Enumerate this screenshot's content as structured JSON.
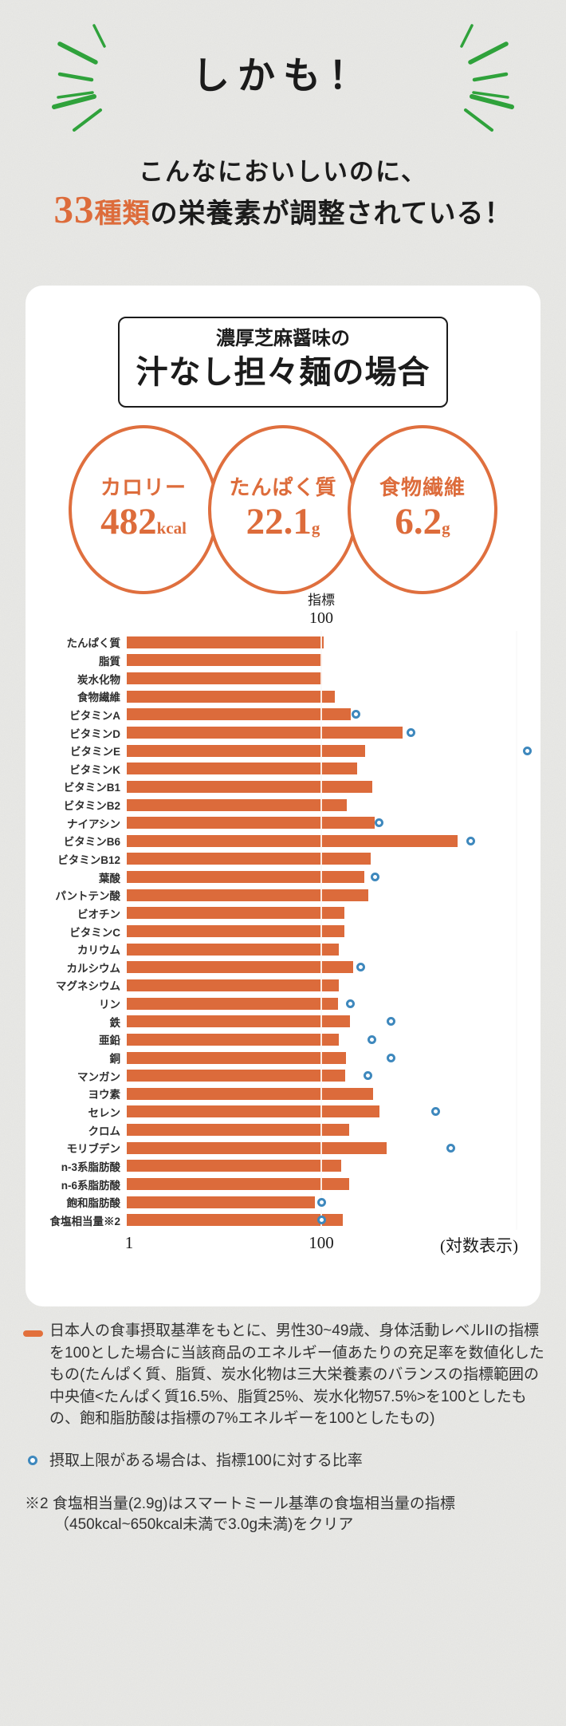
{
  "header": {
    "kicker": "しかも！",
    "subtitle": "こんなにおいしいのに、",
    "headline_number": "33",
    "headline_unit": "種類",
    "headline_rest": "の栄養素が調整されている！"
  },
  "card": {
    "title_small": "濃厚芝麻醤味の",
    "title_large": "汁なし担々麺の場合",
    "stats": [
      {
        "label": "カロリー",
        "value": "482",
        "unit": "kcal"
      },
      {
        "label": "たんぱく質",
        "value": "22.1",
        "unit": "g"
      },
      {
        "label": "食物繊維",
        "value": "6.2",
        "unit": "g"
      }
    ]
  },
  "chart_data": {
    "type": "bar",
    "orientation": "horizontal",
    "scale": "log",
    "xlim": [
      1,
      10000
    ],
    "indicator_label": "指標",
    "indicator_value": "100",
    "x_ticks": [
      "1",
      "100"
    ],
    "axis_note": "(対数表示)",
    "grid": "vertical gridlines at 100 and 10000",
    "legend_position": "below-as-footnotes",
    "categories": [
      "たんぱく質",
      "脂質",
      "炭水化物",
      "食物繊維",
      "ビタミンA",
      "ビタミンD",
      "ビタミンE",
      "ビタミンK",
      "ビタミンB1",
      "ビタミンB2",
      "ナイアシン",
      "ビタミンB6",
      "ビタミンB12",
      "葉酸",
      "パントテン酸",
      "ビオチン",
      "ビタミンC",
      "カリウム",
      "カルシウム",
      "マグネシウム",
      "リン",
      "鉄",
      "亜鉛",
      "銅",
      "マンガン",
      "ヨウ素",
      "セレン",
      "クロム",
      "モリブデン",
      "n-3系脂肪酸",
      "n-6系脂肪酸",
      "飽和脂肪酸",
      "食塩相当量※2"
    ],
    "series": [
      {
        "name": "充足率（指標100）",
        "values": [
          105,
          100,
          100,
          137,
          200,
          680,
          280,
          230,
          330,
          180,
          350,
          2500,
          320,
          275,
          300,
          170,
          170,
          150,
          210,
          150,
          147,
          195,
          149,
          177,
          175,
          335,
          390,
          190,
          460,
          158,
          190,
          85,
          165
        ]
      },
      {
        "name": "摂取上限がある場合の指標100に対する比率",
        "values": [
          null,
          null,
          null,
          null,
          225,
          830,
          13000,
          null,
          null,
          null,
          390,
          3400,
          null,
          350,
          null,
          null,
          null,
          null,
          250,
          null,
          197,
          510,
          330,
          510,
          300,
          null,
          1480,
          null,
          2100,
          null,
          null,
          100,
          100
        ]
      }
    ]
  },
  "footnotes": {
    "legend1_lines": [
      "日本人の食事摂取基準をもとに、男性30~49歳、身体活動レベルIIの指標",
      "を100とした場合に当該商品のエネルギー値あたりの充足率を数値化した",
      "もの(たんぱく質、脂質、炭水化物は三大栄養素のバランスの指標範囲の",
      "中央値<たんぱく質16.5%、脂質25%、炭水化物57.5%>を100としたも",
      "の、飽和脂肪酸は指標の7%エネルギーを100としたもの)"
    ],
    "legend2": "摂取上限がある場合は、指標100に対する比率",
    "note_line1": "※2 食塩相当量(2.9g)はスマートミール基準の食塩相当量の指標",
    "note_line2": "（450kcal~650kcal未満で3.0g未満)をクリア"
  },
  "colors": {
    "bar_orange": "#dc6b3b",
    "accent_orange": "#df6f3e",
    "limit_blue": "#3e88bd",
    "burst_green": "#2fa23b",
    "paper": "#eaeae7",
    "card": "#ffffff"
  }
}
